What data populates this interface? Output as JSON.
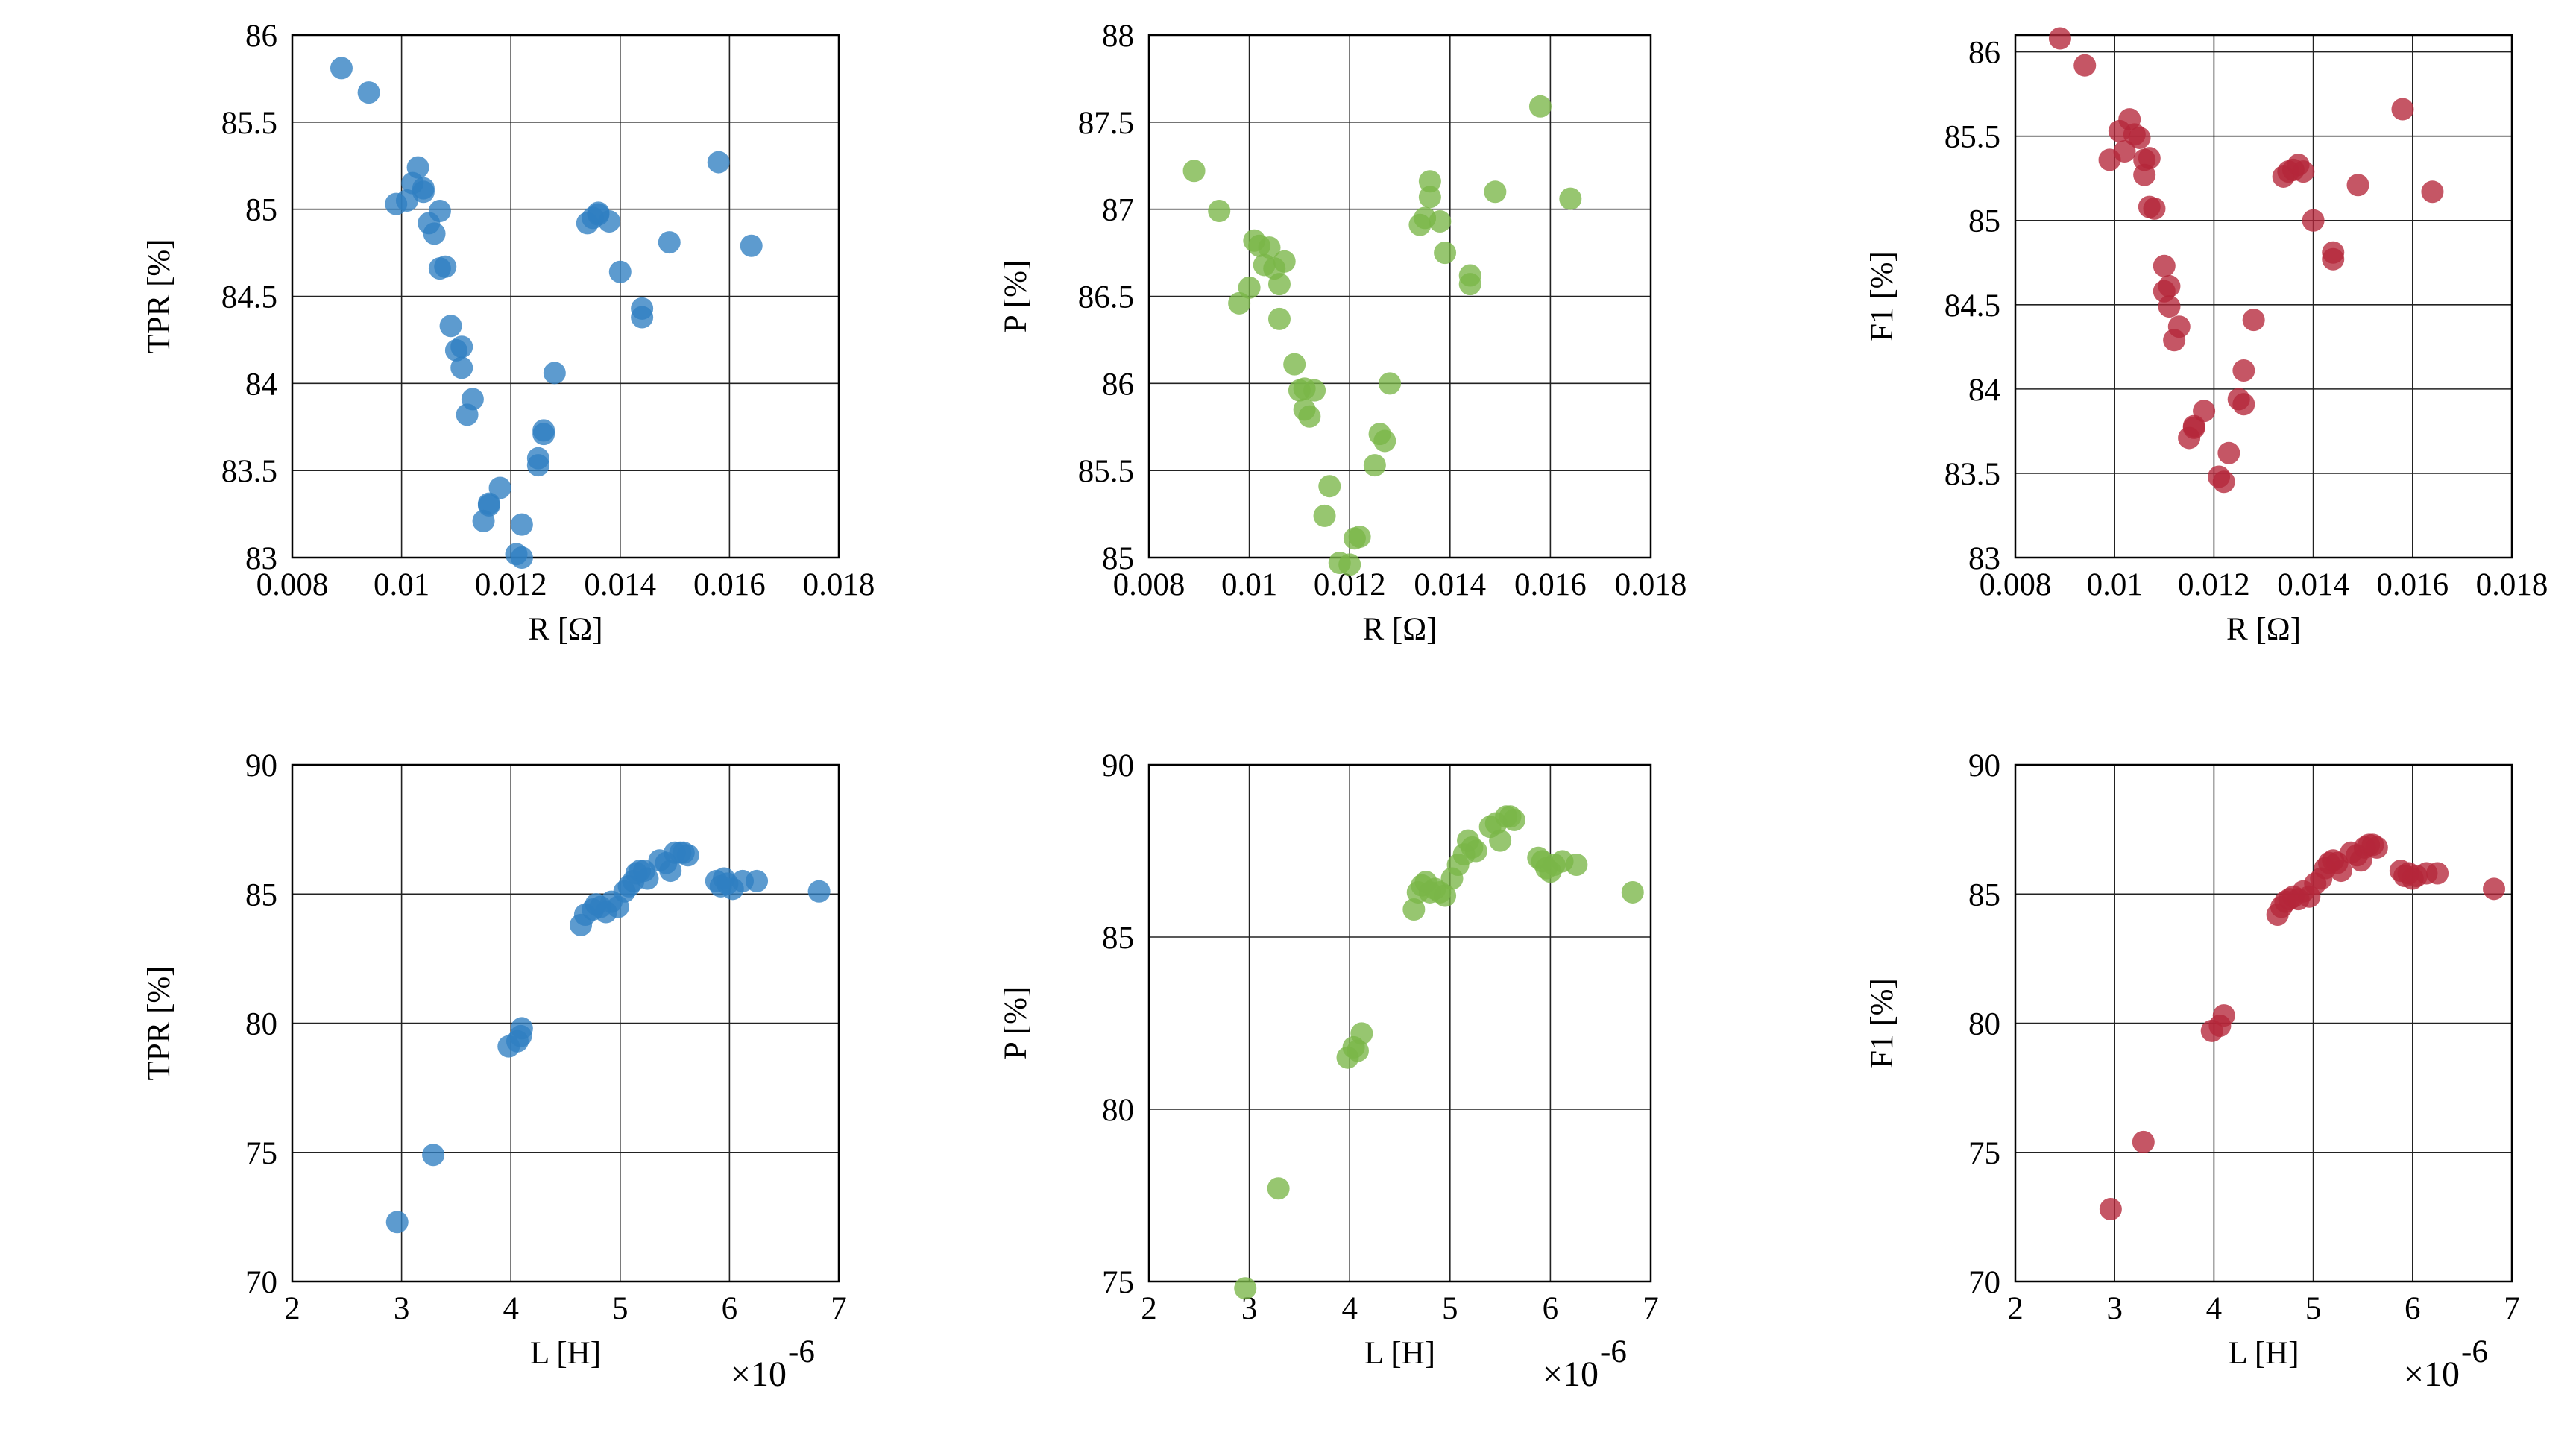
{
  "chart_data": [
    {
      "type": "scatter",
      "xlabel": "R [Ω]",
      "ylabel": "TPR [%]",
      "xlim": [
        0.008,
        0.018
      ],
      "ylim": [
        83,
        86
      ],
      "xticks": [
        0.008,
        0.01,
        0.012,
        0.014,
        0.016,
        0.018
      ],
      "xtick_labels": [
        "0.008",
        "0.01",
        "0.012",
        "0.014",
        "0.016",
        "0.018"
      ],
      "yticks": [
        83,
        83.5,
        84,
        84.5,
        85,
        85.5,
        86
      ],
      "ytick_labels": [
        "83",
        "83.5",
        "84",
        "84.5",
        "85",
        "85.5",
        "86"
      ],
      "x_exponent": "",
      "grid": true,
      "color": "#2f7fc1",
      "series": [
        {
          "x": [
            0.0089,
            0.0094,
            0.0099,
            0.0101,
            0.0102,
            0.0103,
            0.0104,
            0.0104,
            0.0105,
            0.0106,
            0.0107,
            0.0107,
            0.0108,
            0.0109,
            0.011,
            0.0111,
            0.0111,
            0.0112,
            0.0113,
            0.0115,
            0.0116,
            0.0116,
            0.0118,
            0.0121,
            0.0122,
            0.0122,
            0.0125,
            0.0125,
            0.0126,
            0.0126,
            0.0128,
            0.0134,
            0.0135,
            0.0136,
            0.0136,
            0.0138,
            0.014,
            0.0144,
            0.0144,
            0.0149,
            0.0158,
            0.0164
          ],
          "y": [
            85.81,
            85.67,
            85.03,
            85.05,
            85.15,
            85.24,
            85.12,
            85.1,
            84.92,
            84.86,
            84.99,
            84.66,
            84.67,
            84.33,
            84.19,
            84.21,
            84.09,
            83.82,
            83.91,
            83.21,
            83.3,
            83.31,
            83.4,
            83.02,
            83.0,
            83.19,
            83.57,
            83.53,
            83.71,
            83.73,
            84.06,
            84.92,
            84.95,
            84.98,
            84.97,
            84.93,
            84.64,
            84.43,
            84.38,
            84.81,
            85.27,
            84.79
          ]
        }
      ]
    },
    {
      "type": "scatter",
      "xlabel": "R [Ω]",
      "ylabel": "P [%]",
      "xlim": [
        0.008,
        0.018
      ],
      "ylim": [
        85,
        88
      ],
      "xticks": [
        0.008,
        0.01,
        0.012,
        0.014,
        0.016,
        0.018
      ],
      "xtick_labels": [
        "0.008",
        "0.01",
        "0.012",
        "0.014",
        "0.016",
        "0.018"
      ],
      "yticks": [
        85,
        85.5,
        86,
        86.5,
        87,
        87.5,
        88
      ],
      "ytick_labels": [
        "85",
        "85.5",
        "86",
        "86.5",
        "87",
        "87.5",
        "88"
      ],
      "x_exponent": "",
      "grid": true,
      "color": "#7ab648",
      "series": [
        {
          "x": [
            0.0089,
            0.0094,
            0.0098,
            0.01,
            0.0101,
            0.0102,
            0.0103,
            0.0104,
            0.0105,
            0.0106,
            0.0106,
            0.0107,
            0.0109,
            0.011,
            0.0111,
            0.0111,
            0.0112,
            0.0113,
            0.0115,
            0.0116,
            0.0118,
            0.012,
            0.0121,
            0.0122,
            0.0125,
            0.0126,
            0.0127,
            0.0128,
            0.0134,
            0.0135,
            0.0136,
            0.0136,
            0.0138,
            0.0139,
            0.0144,
            0.0144,
            0.0149,
            0.0158,
            0.0164
          ],
          "y": [
            87.22,
            86.99,
            86.46,
            86.55,
            86.82,
            86.79,
            86.68,
            86.78,
            86.66,
            86.57,
            86.37,
            86.7,
            86.11,
            85.96,
            85.85,
            85.97,
            85.81,
            85.96,
            85.24,
            85.41,
            84.97,
            84.96,
            85.11,
            85.12,
            85.53,
            85.71,
            85.67,
            86.0,
            86.91,
            86.95,
            87.07,
            87.16,
            86.93,
            86.75,
            86.62,
            86.57,
            87.1,
            87.59,
            87.06
          ]
        }
      ]
    },
    {
      "type": "scatter",
      "xlabel": "R [Ω]",
      "ylabel": "F1 [%]",
      "xlim": [
        0.008,
        0.018
      ],
      "ylim": [
        83,
        86.1
      ],
      "xticks": [
        0.008,
        0.01,
        0.012,
        0.014,
        0.016,
        0.018
      ],
      "xtick_labels": [
        "0.008",
        "0.01",
        "0.012",
        "0.014",
        "0.016",
        "0.018"
      ],
      "yticks": [
        83,
        83.5,
        84,
        84.5,
        85,
        85.5,
        86
      ],
      "ytick_labels": [
        "83",
        "83.5",
        "84",
        "84.5",
        "85",
        "85.5",
        "86"
      ],
      "x_exponent": "",
      "grid": true,
      "color": "#b5273a",
      "series": [
        {
          "x": [
            0.0089,
            0.0094,
            0.0099,
            0.0101,
            0.0102,
            0.0103,
            0.0104,
            0.0105,
            0.0106,
            0.0106,
            0.0107,
            0.0107,
            0.0108,
            0.011,
            0.011,
            0.0111,
            0.0111,
            0.0112,
            0.0113,
            0.0115,
            0.0116,
            0.0116,
            0.0118,
            0.0121,
            0.0122,
            0.0123,
            0.0125,
            0.0126,
            0.0126,
            0.0128,
            0.0134,
            0.0135,
            0.0136,
            0.0137,
            0.0138,
            0.014,
            0.0144,
            0.0144,
            0.0149,
            0.0158,
            0.0164
          ],
          "y": [
            86.08,
            85.92,
            85.36,
            85.53,
            85.41,
            85.6,
            85.51,
            85.49,
            85.36,
            85.27,
            85.08,
            85.37,
            85.07,
            84.73,
            84.58,
            84.49,
            84.61,
            84.29,
            84.37,
            83.71,
            83.78,
            83.77,
            83.87,
            83.48,
            83.45,
            83.62,
            83.94,
            83.91,
            84.11,
            84.41,
            85.26,
            85.29,
            85.3,
            85.33,
            85.29,
            85.0,
            84.81,
            84.77,
            85.21,
            85.66,
            85.17
          ]
        }
      ]
    },
    {
      "type": "scatter",
      "xlabel": "L [H]",
      "ylabel": "TPR [%]",
      "xlim": [
        2,
        7
      ],
      "ylim": [
        70,
        90
      ],
      "xticks": [
        2,
        3,
        4,
        5,
        6,
        7
      ],
      "xtick_labels": [
        "2",
        "3",
        "4",
        "5",
        "6",
        "7"
      ],
      "yticks": [
        70,
        75,
        80,
        85,
        90
      ],
      "ytick_labels": [
        "70",
        "75",
        "80",
        "85",
        "90"
      ],
      "x_exponent": "×10",
      "x_exponent_power": "-6",
      "grid": true,
      "color": "#2f7fc1",
      "series": [
        {
          "x": [
            2.96,
            3.29,
            3.98,
            4.06,
            4.09,
            4.1,
            4.64,
            4.68,
            4.75,
            4.78,
            4.82,
            4.87,
            4.92,
            4.98,
            5.04,
            5.08,
            5.12,
            5.15,
            5.18,
            5.22,
            5.25,
            5.36,
            5.42,
            5.46,
            5.5,
            5.55,
            5.58,
            5.62,
            5.88,
            5.92,
            5.95,
            5.98,
            6.03,
            6.12,
            6.25,
            6.82
          ],
          "y": [
            72.3,
            74.9,
            79.1,
            79.3,
            79.5,
            79.8,
            83.8,
            84.2,
            84.4,
            84.6,
            84.5,
            84.3,
            84.7,
            84.5,
            85.1,
            85.3,
            85.5,
            85.8,
            85.9,
            85.9,
            85.6,
            86.3,
            86.2,
            85.9,
            86.6,
            86.6,
            86.6,
            86.5,
            85.5,
            85.3,
            85.6,
            85.4,
            85.2,
            85.5,
            85.5,
            85.1
          ]
        }
      ]
    },
    {
      "type": "scatter",
      "xlabel": "L [H]",
      "ylabel": "P [%]",
      "xlim": [
        2,
        7
      ],
      "ylim": [
        75,
        90
      ],
      "xticks": [
        2,
        3,
        4,
        5,
        6,
        7
      ],
      "xtick_labels": [
        "2",
        "3",
        "4",
        "5",
        "6",
        "7"
      ],
      "yticks": [
        75,
        80,
        85,
        90
      ],
      "ytick_labels": [
        "75",
        "80",
        "85",
        "90"
      ],
      "x_exponent": "×10",
      "x_exponent_power": "-6",
      "grid": true,
      "color": "#7ab648",
      "series": [
        {
          "x": [
            2.96,
            3.29,
            3.98,
            4.04,
            4.08,
            4.12,
            4.64,
            4.68,
            4.72,
            4.76,
            4.8,
            4.85,
            4.9,
            4.95,
            5.02,
            5.08,
            5.14,
            5.18,
            5.22,
            5.26,
            5.4,
            5.46,
            5.5,
            5.56,
            5.6,
            5.64,
            5.88,
            5.92,
            5.96,
            6.0,
            6.04,
            6.12,
            6.26,
            6.82
          ],
          "y": [
            74.8,
            77.7,
            81.5,
            81.8,
            81.7,
            82.2,
            85.8,
            86.3,
            86.5,
            86.6,
            86.3,
            86.4,
            86.3,
            86.2,
            86.7,
            87.1,
            87.4,
            87.8,
            87.6,
            87.5,
            88.2,
            88.3,
            87.8,
            88.5,
            88.5,
            88.4,
            87.3,
            87.2,
            87.0,
            86.9,
            87.1,
            87.2,
            87.1,
            86.3
          ]
        }
      ]
    },
    {
      "type": "scatter",
      "xlabel": "L [H]",
      "ylabel": "F1 [%]",
      "xlim": [
        2,
        7
      ],
      "ylim": [
        70,
        90
      ],
      "xticks": [
        2,
        3,
        4,
        5,
        6,
        7
      ],
      "xtick_labels": [
        "2",
        "3",
        "4",
        "5",
        "6",
        "7"
      ],
      "yticks": [
        70,
        75,
        80,
        85,
        90
      ],
      "ytick_labels": [
        "70",
        "75",
        "80",
        "85",
        "90"
      ],
      "x_exponent": "×10",
      "x_exponent_power": "-6",
      "grid": true,
      "color": "#b5273a",
      "series": [
        {
          "x": [
            2.96,
            3.29,
            3.98,
            4.06,
            4.1,
            4.64,
            4.68,
            4.72,
            4.76,
            4.8,
            4.85,
            4.9,
            4.96,
            5.02,
            5.08,
            5.12,
            5.16,
            5.2,
            5.24,
            5.28,
            5.38,
            5.44,
            5.48,
            5.52,
            5.56,
            5.6,
            5.64,
            5.88,
            5.92,
            5.96,
            6.0,
            6.04,
            6.14,
            6.25,
            6.82
          ],
          "y": [
            72.8,
            75.4,
            79.7,
            79.9,
            80.3,
            84.2,
            84.5,
            84.7,
            84.8,
            84.9,
            84.8,
            85.1,
            84.9,
            85.4,
            85.6,
            86.0,
            86.2,
            86.3,
            86.2,
            85.9,
            86.6,
            86.5,
            86.3,
            86.8,
            86.9,
            86.9,
            86.8,
            85.9,
            85.7,
            85.8,
            85.6,
            85.7,
            85.8,
            85.8,
            85.2
          ]
        }
      ]
    }
  ]
}
